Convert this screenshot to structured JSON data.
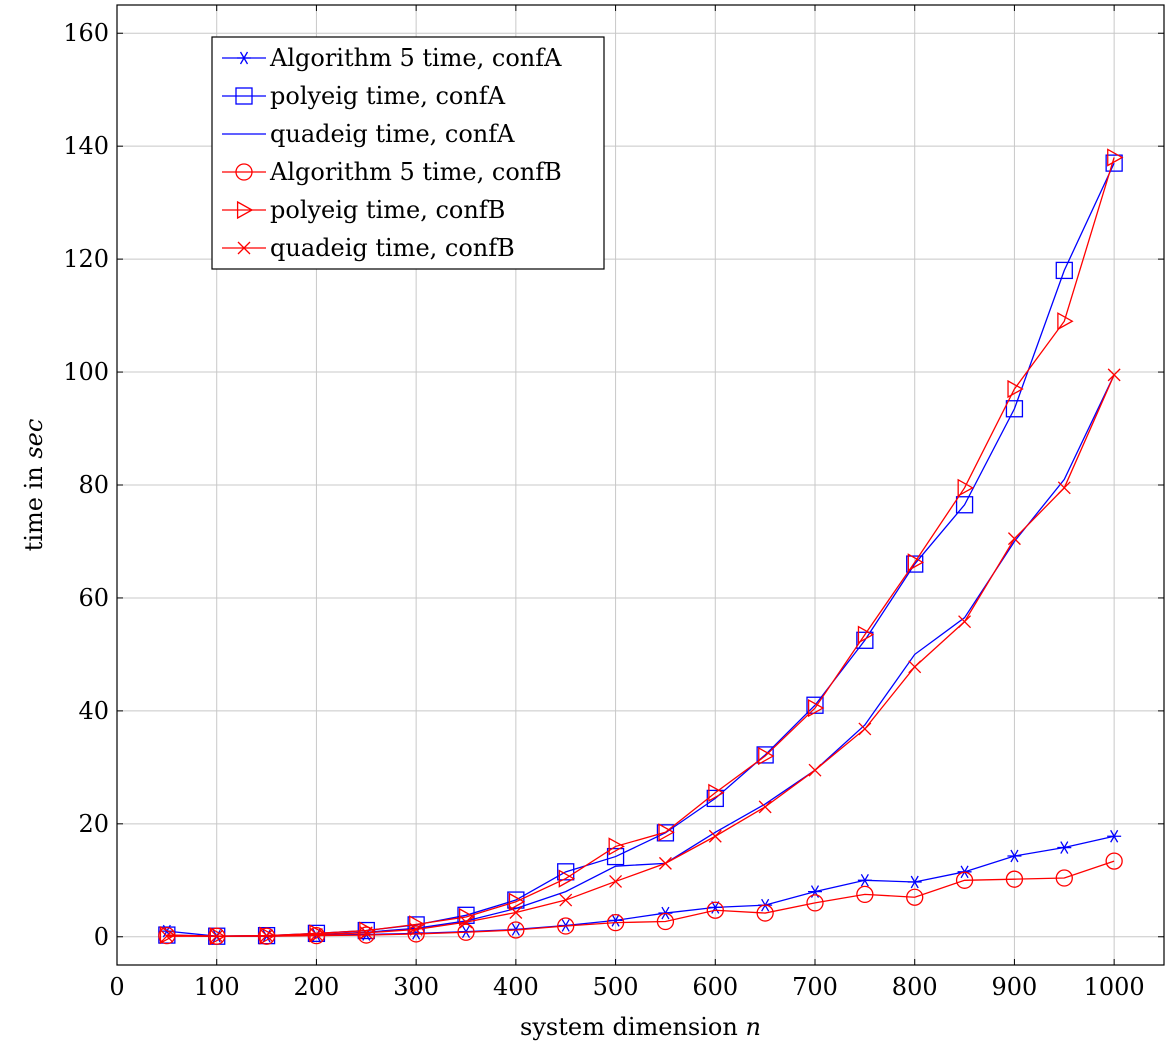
{
  "chart_data": {
    "type": "line",
    "title": "",
    "xlabel": "system dimension",
    "xlabel_var": "n",
    "ylabel": "time in",
    "ylabel_var": "sec",
    "xlim": [
      0,
      1050
    ],
    "ylim": [
      -5,
      165
    ],
    "xticks": [
      0,
      100,
      200,
      300,
      400,
      500,
      600,
      700,
      800,
      900,
      1000
    ],
    "yticks": [
      0,
      20,
      40,
      60,
      80,
      100,
      120,
      140,
      160
    ],
    "grid": true,
    "legend_position": "top-left",
    "x": [
      50,
      100,
      150,
      200,
      250,
      300,
      350,
      400,
      450,
      500,
      550,
      600,
      650,
      700,
      750,
      800,
      850,
      900,
      950,
      1000
    ],
    "series": [
      {
        "name": "Algorithm 5 time, confA",
        "color": "#0000ff",
        "marker": "asterisk",
        "values": [
          1.0,
          0.1,
          0.1,
          0.3,
          0.4,
          0.6,
          0.9,
          1.3,
          2.0,
          2.9,
          4.2,
          5.2,
          5.6,
          8.0,
          10.0,
          9.7,
          11.5,
          14.3,
          15.8,
          17.8
        ]
      },
      {
        "name": "polyeig time, confA",
        "color": "#0000ff",
        "marker": "square",
        "values": [
          0.3,
          0.1,
          0.2,
          0.6,
          1.1,
          2.1,
          3.8,
          6.5,
          11.5,
          14.2,
          18.4,
          24.5,
          32.2,
          41.0,
          52.5,
          66.0,
          76.5,
          93.5,
          118.0,
          137.0
        ]
      },
      {
        "name": "quadeig time, confA",
        "color": "#0000ff",
        "marker": "none",
        "values": [
          0.2,
          0.1,
          0.2,
          0.4,
          0.8,
          1.5,
          2.8,
          5.0,
          8.0,
          12.5,
          13.0,
          18.5,
          23.5,
          29.5,
          37.5,
          50.0,
          56.5,
          70.0,
          81.0,
          99.5
        ]
      },
      {
        "name": "Algorithm 5 time, confB",
        "color": "#ff0000",
        "marker": "circle",
        "values": [
          0.2,
          0.1,
          0.1,
          0.2,
          0.3,
          0.5,
          0.8,
          1.2,
          1.9,
          2.5,
          2.7,
          4.7,
          4.2,
          6.0,
          7.5,
          7.0,
          10.0,
          10.2,
          10.4,
          13.4
        ]
      },
      {
        "name": "polyeig time, confB",
        "color": "#ff0000",
        "marker": "triangle-right",
        "values": [
          0.3,
          0.1,
          0.2,
          0.6,
          1.1,
          2.2,
          3.5,
          6.2,
          10.3,
          16.0,
          18.5,
          25.5,
          32.0,
          40.5,
          53.5,
          66.3,
          79.5,
          97.0,
          109.0,
          138.0
        ]
      },
      {
        "name": "quadeig time, confB",
        "color": "#ff0000",
        "marker": "cross",
        "values": [
          0.1,
          0.1,
          0.2,
          0.4,
          0.7,
          1.3,
          2.6,
          4.3,
          6.5,
          9.8,
          13.0,
          17.8,
          23.0,
          29.5,
          36.8,
          47.8,
          55.8,
          70.5,
          79.5,
          99.5
        ]
      }
    ]
  }
}
